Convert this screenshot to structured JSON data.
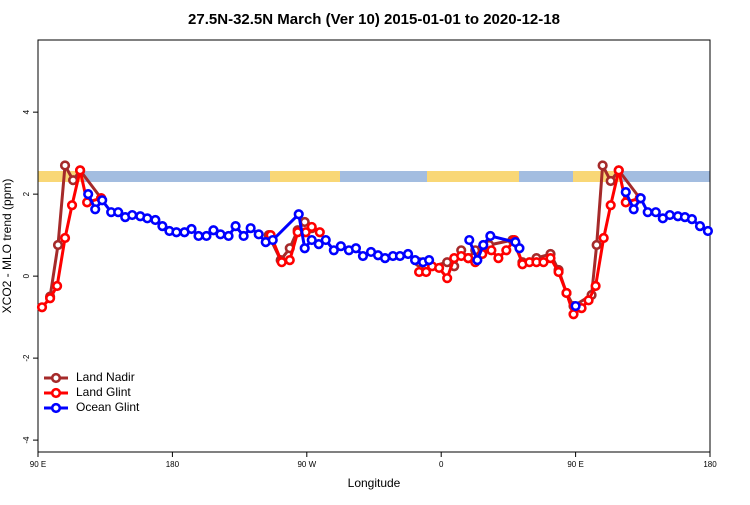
{
  "chart_data": {
    "type": "line",
    "title": "27.5N-32.5N March (Ver 10)   2015-01-01 to 2020-12-18",
    "x_label": "Longitude",
    "y_label": "XCO2 - MLO trend (ppm)",
    "xlim": [
      90,
      540
    ],
    "xticks": [
      {
        "value": 90,
        "label": "90 E"
      },
      {
        "value": 180,
        "label": "180"
      },
      {
        "value": 270,
        "label": "90 W"
      },
      {
        "value": 360,
        "label": "0"
      },
      {
        "value": 450,
        "label": "90 E"
      },
      {
        "value": 540,
        "label": "180"
      }
    ],
    "ylim": [
      -4.29,
      5.76
    ],
    "yticks": [
      -4,
      -2,
      0,
      2,
      4
    ],
    "legend": "bottomleft",
    "series": [
      {
        "name": "Land Nadir",
        "color": "#a52a2a",
        "x": [
          98.1,
          103.4,
          108.1,
          113.5,
          118.2,
          132.3,
          244.5,
          252.5,
          258.6,
          263.9,
          268.6,
          273.3,
          345.2,
          349.9,
          364,
          368.7,
          373.4,
          378.1,
          382.8,
          387.5,
          392.2,
          407.7,
          414.4,
          423.8,
          433.2,
          438.6,
          443.9,
          448.6,
          460.7,
          464.1,
          468.1,
          473.5,
          478.9,
          493
        ],
        "values": [
          -0.5,
          0.76,
          2.7,
          2.34,
          2.58,
          1.9,
          1.0,
          0.39,
          0.68,
          1.12,
          1.32,
          1.17,
          0.34,
          0.2,
          0.34,
          0.24,
          0.63,
          0.44,
          0.63,
          0.68,
          0.76,
          0.88,
          0.34,
          0.44,
          0.54,
          0.15,
          -0.41,
          -0.73,
          -0.46,
          0.76,
          2.7,
          2.32,
          2.58,
          1.9
        ]
      },
      {
        "name": "Land Glint",
        "color": "#ff0000",
        "x": [
          92.7,
          98.1,
          102.8,
          108.1,
          112.8,
          118.2,
          122.9,
          132.3,
          245.8,
          253.2,
          258.6,
          263.9,
          269.3,
          273.3,
          278.7,
          345.2,
          349.9,
          353.9,
          358.6,
          364,
          368.7,
          373.4,
          378.1,
          382.8,
          387.5,
          393.6,
          398.3,
          403.6,
          409,
          414.4,
          419.1,
          423.8,
          428.5,
          433.2,
          438.6,
          443.9,
          448.6,
          454,
          458.7,
          463.4,
          468.8,
          473.5,
          478.9,
          483.6,
          493
        ],
        "values": [
          -0.76,
          -0.54,
          -0.24,
          0.93,
          1.73,
          2.58,
          1.8,
          1.9,
          1.0,
          0.34,
          0.39,
          1.07,
          1.07,
          1.2,
          1.07,
          0.1,
          0.1,
          0.24,
          0.2,
          -0.05,
          0.44,
          0.49,
          0.44,
          0.34,
          0.54,
          0.63,
          0.44,
          0.63,
          0.88,
          0.29,
          0.34,
          0.34,
          0.34,
          0.44,
          0.1,
          -0.41,
          -0.93,
          -0.78,
          -0.59,
          -0.24,
          0.93,
          1.73,
          2.58,
          1.8,
          1.9
        ]
      },
      {
        "name": "Ocean Glint",
        "color": "#0000ff",
        "x": [
          123.6,
          128.3,
          133,
          139,
          143.7,
          148.4,
          153.1,
          158.5,
          163.2,
          168.6,
          173.3,
          178,
          182.7,
          188.1,
          192.8,
          197.5,
          202.8,
          207.5,
          212.2,
          217.6,
          222.3,
          227.7,
          232.4,
          237.8,
          242.5,
          247.2,
          264.6,
          268.6,
          273.3,
          278,
          282.7,
          288.1,
          292.8,
          298.2,
          302.9,
          307.6,
          313,
          317.7,
          322.4,
          327.7,
          332.4,
          337.8,
          342.5,
          347.9,
          351.9,
          378.8,
          384.2,
          388.2,
          392.9,
          409.7,
          412.4,
          450,
          483.6,
          488.9,
          493.6,
          498.3,
          503.7,
          508.4,
          513.1,
          518.5,
          523.2,
          527.9,
          533.3,
          538.6
        ],
        "values": [
          2.0,
          1.63,
          1.85,
          1.56,
          1.56,
          1.44,
          1.49,
          1.46,
          1.41,
          1.37,
          1.22,
          1.1,
          1.07,
          1.07,
          1.15,
          0.98,
          0.98,
          1.12,
          1.02,
          0.98,
          1.22,
          0.98,
          1.17,
          1.02,
          0.83,
          0.88,
          1.51,
          0.68,
          0.88,
          0.78,
          0.88,
          0.63,
          0.73,
          0.63,
          0.68,
          0.49,
          0.59,
          0.51,
          0.44,
          0.49,
          0.49,
          0.54,
          0.39,
          0.34,
          0.39,
          0.88,
          0.39,
          0.76,
          0.98,
          0.83,
          0.68,
          -0.73,
          2.05,
          1.63,
          1.9,
          1.56,
          1.56,
          1.41,
          1.49,
          1.46,
          1.44,
          1.39,
          1.22,
          1.1
        ]
      }
    ]
  }
}
